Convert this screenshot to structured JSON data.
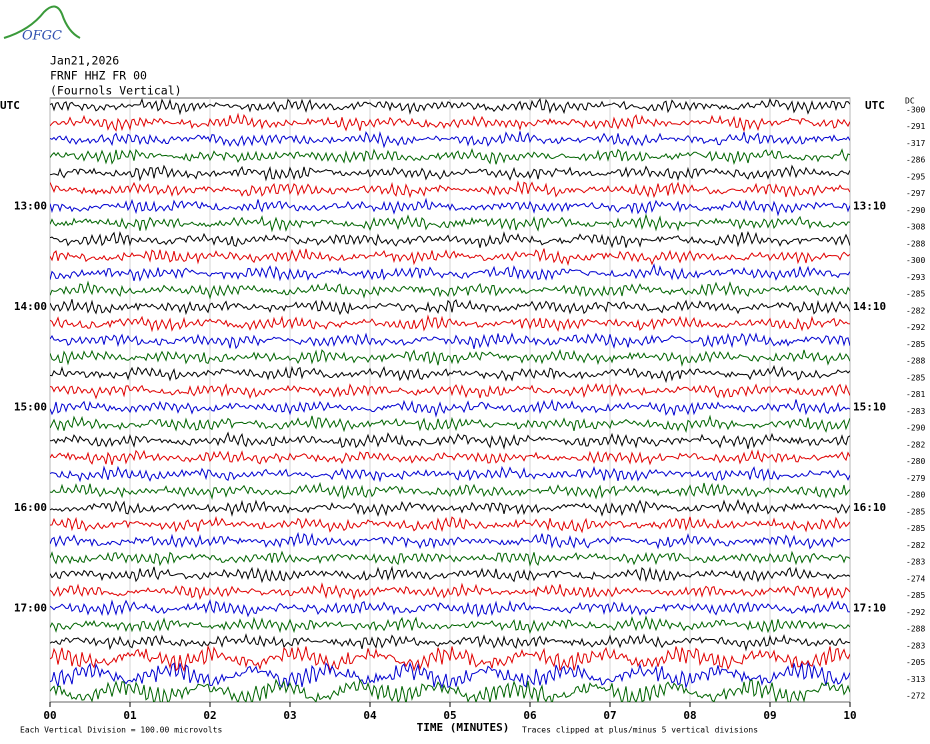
{
  "logo": "OFGC",
  "header": {
    "date": "Jan21,2026",
    "station": "FRNF HHZ FR 00",
    "location": "(Fournols Vertical)"
  },
  "chart_data": {
    "type": "helicorder",
    "left_axis_label": "UTC",
    "right_axis_label": "UTC",
    "dc_label": "DC",
    "xlabel": "TIME (MINUTES)",
    "xlim": [
      0,
      10
    ],
    "xticks": [
      {
        "value": 0,
        "label": "00"
      },
      {
        "value": 1,
        "label": "01"
      },
      {
        "value": 2,
        "label": "02"
      },
      {
        "value": 3,
        "label": "03"
      },
      {
        "value": 4,
        "label": "04"
      },
      {
        "value": 5,
        "label": "05"
      },
      {
        "value": 6,
        "label": "06"
      },
      {
        "value": 7,
        "label": "07"
      },
      {
        "value": 8,
        "label": "08"
      },
      {
        "value": 9,
        "label": "09"
      },
      {
        "value": 10,
        "label": "10"
      }
    ],
    "grid": true,
    "colors": [
      "#000000",
      "#e00000",
      "#0000d0",
      "#006400"
    ],
    "left_labels": [
      null,
      null,
      null,
      null,
      null,
      null,
      "13:00",
      null,
      null,
      null,
      null,
      null,
      "14:00",
      null,
      null,
      null,
      null,
      null,
      "15:00",
      null,
      null,
      null,
      null,
      null,
      "16:00",
      null,
      null,
      null,
      null,
      null,
      "17:00",
      null,
      null,
      null,
      null,
      null
    ],
    "right_labels": [
      null,
      null,
      null,
      null,
      null,
      null,
      "13:10",
      null,
      null,
      null,
      null,
      null,
      "14:10",
      null,
      null,
      null,
      null,
      null,
      "15:10",
      null,
      null,
      null,
      null,
      null,
      "16:10",
      null,
      null,
      null,
      null,
      null,
      "17:10",
      null,
      null,
      null,
      null,
      null
    ],
    "dc": [
      -300,
      -291,
      -317,
      -286,
      -295,
      -297,
      -290,
      -308,
      -288,
      -300,
      -293,
      -285,
      -282,
      -292,
      -285,
      -288,
      -285,
      -281,
      -283,
      -290,
      -282,
      -280,
      -279,
      -280,
      -285,
      -285,
      -282,
      -283,
      -274,
      -285,
      -292,
      -288,
      -283,
      -205,
      -313,
      -272
    ],
    "footer_left": "Each Vertical Division =  100.00 microvolts",
    "footer_right": "Traces clipped at plus/minus 5 vertical divisions"
  }
}
